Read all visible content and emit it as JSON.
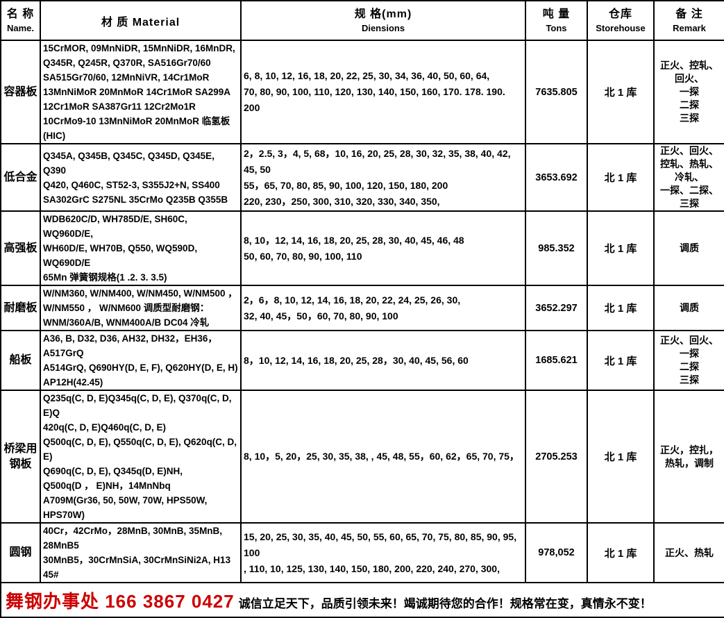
{
  "table": {
    "header": {
      "name": {
        "zh": "名 称",
        "en": "Name."
      },
      "material": {
        "label": "材 质 Material"
      },
      "dimensions": {
        "zh": "规 格(mm)",
        "en": "Diensions"
      },
      "tons": {
        "zh": "吨 量",
        "en": "Tons"
      },
      "storehouse": {
        "zh": "仓库",
        "en": "Storehouse"
      },
      "remark": {
        "zh": "备 注",
        "en": "Remark"
      }
    },
    "rows": [
      {
        "name": "容器板",
        "material": "15CrMOR, 09MnNiDR, 15MnNiDR, 16MnDR,\nQ345R, Q245R, Q370R, SA516Gr70/60\nSA515Gr70/60, 12MnNiVR, 14Cr1MoR\n13MnNiMoR 20MnMoR 14Cr1MoR SA299A\n12Cr1MoR SA387Gr11 12Cr2Mo1R\n10CrMo9-10 13MnNiMoR 20MnMoR 临氢板(HIC)",
        "dimensions": "6, 8, 10, 12, 16, 18, 20, 22, 25, 30, 34, 36, 40, 50, 60, 64,\n70, 80, 90, 100, 110, 120, 130, 140, 150, 160, 170. 178. 190. 200",
        "tons": "7635.805",
        "storehouse": "北 1 库",
        "remark": "正火、控轧、\n回火、\n一探\n二探\n三探"
      },
      {
        "name": "低合金",
        "material": "Q345A, Q345B, Q345C, Q345D, Q345E, Q390\nQ420, Q460C, ST52-3, S355J2+N, SS400\nSA302GrC S275NL 35CrMo Q235B Q355B",
        "dimensions": "2，2.5, 3，4, 5, 68，10, 16, 20, 25, 28, 30, 32, 35, 38, 40, 42, 45, 50\n55，65, 70, 80, 85, 90, 100, 120, 150, 180, 200\n220, 230，250, 300, 310, 320, 330, 340, 350,",
        "tons": "3653.692",
        "storehouse": "北 1 库",
        "remark": "正火、回火、\n控轧、热轧、\n冷轧、\n一探、二探、\n三探"
      },
      {
        "name": "高强板",
        "material": "WDB620C/D, WH785D/E, SH60C, WQ960D/E,\nWH60D/E, WH70B, Q550, WQ590D, WQ690D/E\n65Mn 弹簧钢规格(1 .2. 3. 3.5)",
        "dimensions": "8, 10，12, 14, 16, 18, 20, 25, 28, 30, 40, 45, 46, 48\n50, 60, 70, 80, 90, 100, 110",
        "tons": "985.352",
        "storehouse": "北 1 库",
        "remark": "调质"
      },
      {
        "name": "耐磨板",
        "material": "W/NM360, W/NM400, W/NM450, W/NM500 ，\nW/NM550 ， W/NM600  调质型耐磨钢：\nWNM/360A/B, WNM400A/B DC04 冷轧",
        "dimensions": "2，6，8, 10, 12, 14, 16, 18, 20, 22, 24, 25, 26, 30,\n32, 40, 45，50，60, 70, 80, 90, 100",
        "tons": "3652.297",
        "storehouse": "北 1 库",
        "remark": "调质"
      },
      {
        "name": "船板",
        "material": "A36, B, D32, D36, AH32, DH32，EH36，A517GrQ\nA514GrQ, Q690HY(D, E, F), Q620HY(D, E, H)\nAP12H(42.45)",
        "dimensions": "8，10, 12, 14, 16, 18, 20, 25, 28，30, 40, 45, 56, 60",
        "tons": "1685.621",
        "storehouse": "北 1 库",
        "remark": "正火、回火、\n一探\n二探\n三探"
      },
      {
        "name": "桥梁用\n钢板",
        "material": "Q235q(C, D, E)Q345q(C, D, E), Q370q(C, D, E)Q\n420q(C, D, E)Q460q(C, D,  E)\nQ500q(C, D, E), Q550q(C, D, E), Q620q(C, D, E)\nQ690q(C, D, E),  Q345q(D,  E)NH,\nQ500q(D ， E)NH，14MnNbq\nA709M(Gr36, 50, 50W, 70W, HPS50W, HPS70W)",
        "dimensions": "8, 10，5, 20，25, 30, 35, 38, , 45, 48, 55，60, 62，65, 70, 75，",
        "tons": "2705.253",
        "storehouse": "北 1 库",
        "remark": "正火，控扎，\n热轧，调制"
      },
      {
        "name": "圆钢",
        "material": "40Cr，42CrMo，28MnB, 30MnB, 35MnB, 28MnB5\n30MnB5，30CrMnSiA, 30CrMnSiNi2A, H13\n45#",
        "dimensions": "15, 20, 25, 30, 35, 40, 45, 50, 55, 60, 65, 70, 75, 80, 85, 90, 95, 100\n, 110, 10, 125, 130, 140, 150, 180, 200, 220, 240, 270, 300,",
        "tons": "978,052",
        "storehouse": "北 1 库",
        "remark": "正火、热轧"
      }
    ]
  },
  "footer": {
    "office": "舞钢办事处  166 3867 0427",
    "slogan": "诚信立足天下，品质引领未来！竭诚期待您的合作！规格常在变，真情永不变！"
  },
  "colors": {
    "accent_red": "#cc0000",
    "border": "#000000",
    "text": "#000000",
    "background": "#ffffff"
  }
}
